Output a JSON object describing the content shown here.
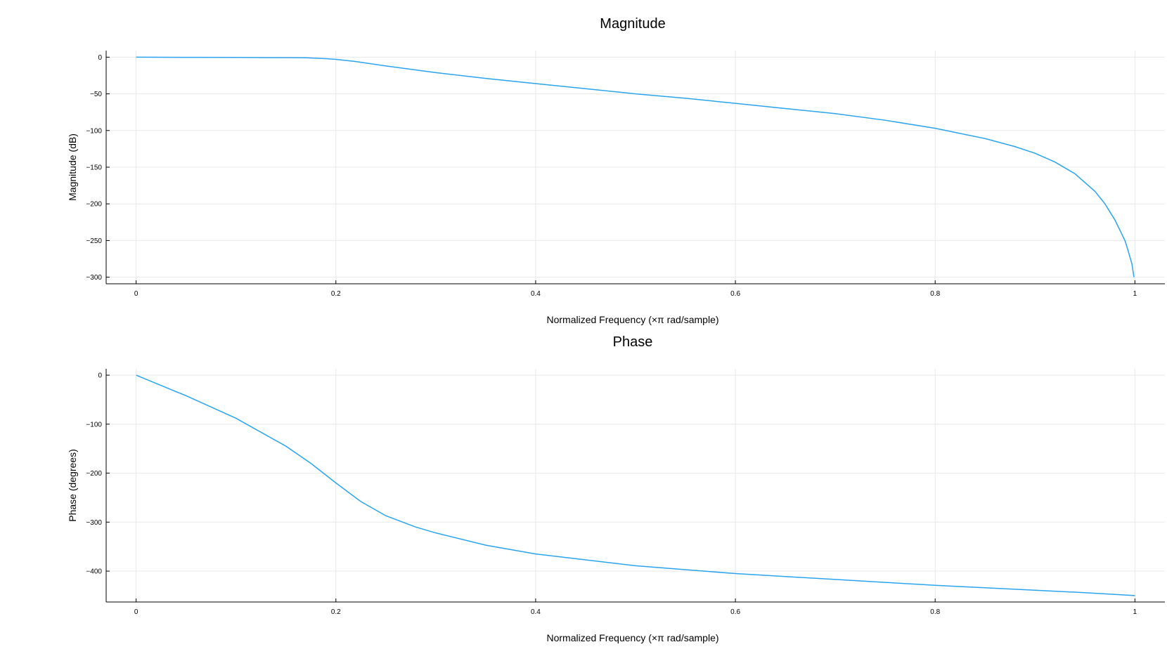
{
  "chart_data": [
    {
      "type": "line",
      "title": "Magnitude",
      "xlabel": "Normalized Frequency (×π rad/sample)",
      "ylabel": "Magnitude (dB)",
      "xlim": [
        -0.03,
        1.03
      ],
      "ylim": [
        -309,
        9
      ],
      "xticks": [
        0,
        0.2,
        0.4,
        0.6,
        0.8,
        1
      ],
      "xtick_labels": [
        "0",
        "0.2",
        "0.4",
        "0.6",
        "0.8",
        "1"
      ],
      "yticks": [
        0,
        -50,
        -100,
        -150,
        -200,
        -250,
        -300
      ],
      "ytick_labels": [
        "0",
        "−50",
        "−100",
        "−150",
        "−200",
        "−250",
        "−300"
      ],
      "grid": true,
      "legend": "none",
      "color": "#2aa4ee",
      "series": [
        {
          "x": [
            0,
            0.05,
            0.1,
            0.15,
            0.17,
            0.19,
            0.2,
            0.22,
            0.25,
            0.3,
            0.35,
            0.4,
            0.45,
            0.5,
            0.55,
            0.6,
            0.65,
            0.7,
            0.75,
            0.8,
            0.85,
            0.88,
            0.9,
            0.92,
            0.94,
            0.96,
            0.97,
            0.98,
            0.99,
            0.993,
            0.997,
            0.999
          ],
          "values": [
            0,
            -0.2,
            -0.4,
            -0.6,
            -0.8,
            -2,
            -3,
            -6,
            -12,
            -21,
            -29,
            -36,
            -43,
            -50,
            -56,
            -63,
            -70,
            -77,
            -86,
            -97,
            -111,
            -122,
            -131,
            -143,
            -159,
            -183,
            -200,
            -222,
            -250,
            -263,
            -282,
            -300
          ]
        }
      ]
    },
    {
      "type": "line",
      "title": "Phase",
      "xlabel": "Normalized Frequency (×π rad/sample)",
      "ylabel": "Phase (degrees)",
      "xlim": [
        -0.03,
        1.03
      ],
      "ylim": [
        -463,
        13
      ],
      "xticks": [
        0,
        0.2,
        0.4,
        0.6,
        0.8,
        1
      ],
      "xtick_labels": [
        "0",
        "0.2",
        "0.4",
        "0.6",
        "0.8",
        "1"
      ],
      "yticks": [
        0,
        -100,
        -200,
        -300,
        -400
      ],
      "ytick_labels": [
        "0",
        "−100",
        "−200",
        "−300",
        "−400"
      ],
      "grid": true,
      "legend": "none",
      "color": "#2aa4ee",
      "series": [
        {
          "x": [
            0,
            0.05,
            0.1,
            0.15,
            0.175,
            0.2,
            0.225,
            0.25,
            0.28,
            0.3,
            0.35,
            0.4,
            0.45,
            0.5,
            0.55,
            0.6,
            0.65,
            0.7,
            0.75,
            0.8,
            0.85,
            0.9,
            0.95,
            1.0
          ],
          "values": [
            0,
            -42,
            -88,
            -145,
            -180,
            -220,
            -258,
            -287,
            -310,
            -322,
            -347,
            -365,
            -377,
            -389,
            -397,
            -405,
            -411,
            -417,
            -423,
            -429,
            -434,
            -439,
            -444,
            -450
          ]
        }
      ]
    }
  ]
}
